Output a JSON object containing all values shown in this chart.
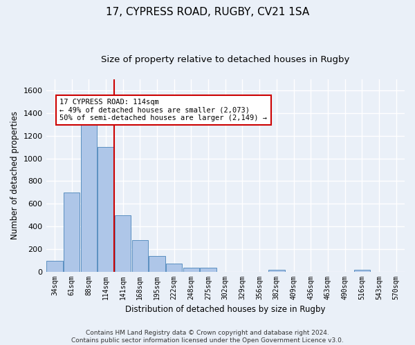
{
  "title1": "17, CYPRESS ROAD, RUGBY, CV21 1SA",
  "title2": "Size of property relative to detached houses in Rugby",
  "xlabel": "Distribution of detached houses by size in Rugby",
  "ylabel": "Number of detached properties",
  "categories": [
    "34sqm",
    "61sqm",
    "88sqm",
    "114sqm",
    "141sqm",
    "168sqm",
    "195sqm",
    "222sqm",
    "248sqm",
    "275sqm",
    "302sqm",
    "329sqm",
    "356sqm",
    "382sqm",
    "409sqm",
    "436sqm",
    "463sqm",
    "490sqm",
    "516sqm",
    "543sqm",
    "570sqm"
  ],
  "values": [
    95,
    700,
    1330,
    1100,
    500,
    275,
    135,
    72,
    35,
    35,
    0,
    0,
    0,
    18,
    0,
    0,
    0,
    0,
    18,
    0,
    0
  ],
  "bar_color": "#aec6e8",
  "bar_edge_color": "#5a8fc0",
  "vline_x": 3.5,
  "vline_color": "#cc0000",
  "annotation_text": "17 CYPRESS ROAD: 114sqm\n← 49% of detached houses are smaller (2,073)\n50% of semi-detached houses are larger (2,149) →",
  "annotation_box_color": "#cc0000",
  "annotation_fontsize": 7.5,
  "ylim": [
    0,
    1700
  ],
  "yticks": [
    0,
    200,
    400,
    600,
    800,
    1000,
    1200,
    1400,
    1600
  ],
  "footer": "Contains HM Land Registry data © Crown copyright and database right 2024.\nContains public sector information licensed under the Open Government Licence v3.0.",
  "bg_color": "#eaf0f8",
  "plot_bg_color": "#eaf0f8",
  "grid_color": "#ffffff",
  "title1_fontsize": 11,
  "title2_fontsize": 9.5
}
